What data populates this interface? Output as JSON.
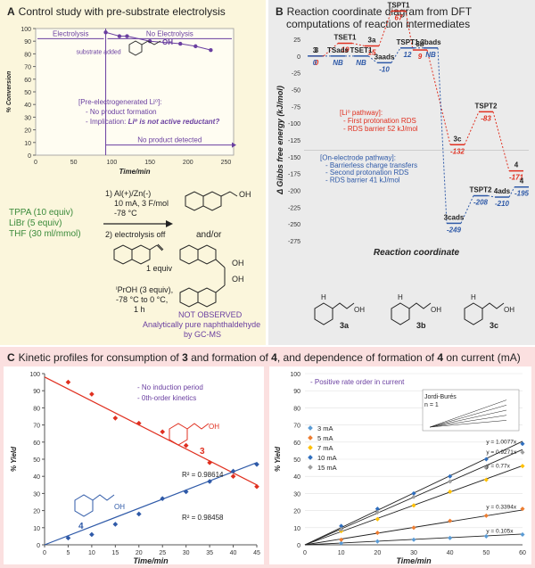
{
  "panelA": {
    "letter": "A",
    "title": "Control study with pre-substrate electrolysis",
    "ylabel": "% Conversion",
    "xlabel": "Time/min",
    "yticks": [
      "0",
      "10",
      "20",
      "30",
      "40",
      "50",
      "60",
      "70",
      "80",
      "90",
      "100"
    ],
    "xticks": [
      "0",
      "50",
      "100",
      "150",
      "200",
      "250"
    ],
    "electrolysis_label": "Electrolysis",
    "no_electrolysis_label": "No Electrolysis",
    "substrate_added": "substrate added",
    "oh_label": "OH",
    "note_line1": "[Pre-electrogenerated Li⁰]:",
    "note_line2": "- No product formation",
    "note_line3": "- Implication: ",
    "note_line3b": "Li⁰ is not active reductant?",
    "no_product": "No product detected",
    "points": [
      [
        92,
        97
      ],
      [
        110,
        94
      ],
      [
        120,
        94
      ],
      [
        150,
        90
      ],
      [
        190,
        88
      ],
      [
        210,
        86
      ],
      [
        230,
        83
      ]
    ]
  },
  "scheme": {
    "reagents1": "TPPA (10 equiv)",
    "reagents2": "LiBr (5 equiv)",
    "reagents3": "THF (30 ml/mmol)",
    "step1a": "1) Al(+)/Zn(-)",
    "step1b": "10 mA, 3 F/mol",
    "step1c": "-78 °C",
    "step2a": "2) electrolysis off",
    "equiv": "1 equiv",
    "iproh": "ⁱPrOH (3 equiv),",
    "temp": "-78 °C to 0 °C,",
    "time": "1 h",
    "andor": "and/or",
    "oh1": "OH",
    "oh2": "OH",
    "oh3": "OH",
    "not_observed": "NOT OBSERVED",
    "analytic1": "Analytically pure naphthaldehyde",
    "analytic2": "by GC-MS"
  },
  "panelB": {
    "letter": "B",
    "title1": "Reaction coordinate diagram from DFT",
    "title2": "computations of reaction intermediates",
    "ylabel": "Δ Gibbs free energy (kJ/mol)",
    "xlabel": "Reaction coordinate",
    "yticks": [
      "25",
      "0",
      "-25",
      "-50",
      "-75",
      "-100",
      "-125",
      "-150",
      "-175",
      "-200",
      "-225",
      "-250",
      "-275"
    ],
    "red_labels": [
      "3",
      "TSET1",
      "3a",
      "TSPT1",
      "3b",
      "3c",
      "TSPT2",
      "4"
    ],
    "red_values": [
      "0",
      "19",
      "15",
      "67",
      "9",
      "-132",
      "-83",
      "-171"
    ],
    "red_note1": "[Li⁰ pathway]:",
    "red_note2": "- First protonation RDS",
    "red_note3": "- RDS barrier 52 kJ/mol",
    "blue_labels": [
      "3",
      "TSads",
      "TSET1",
      "3aads",
      "TSPT1",
      "3bads",
      "3cads",
      "TSPT2",
      "4ads",
      "4"
    ],
    "blue_values": [
      "0",
      "NB",
      "NB",
      "-10",
      "12",
      "NB",
      "-249",
      "-208",
      "-210",
      "-195"
    ],
    "blue_note1": "[On-electrode pathway]:",
    "blue_note2": "- Barrierless charge transfers",
    "blue_note3": "- Second protonation RDS",
    "blue_note4": "- RDS barrier 41 kJ/mol",
    "struct_a": "3a",
    "struct_b": "3b",
    "struct_c": "3c",
    "h": "H",
    "oh": "OH"
  },
  "panelC": {
    "letter": "C",
    "title_parts": [
      "Kinetic profiles for consumption of ",
      "3",
      " and formation of ",
      "4",
      ", and dependence of formation of ",
      "4",
      " on current (mA)"
    ],
    "left": {
      "ylabel": "% Yield",
      "xlabel": "Time/min",
      "note1": "- No induction period",
      "note2": "- 0th-order kinetics",
      "label3": "3",
      "label4": "4",
      "oh3": "OH",
      "oh4": "OH",
      "r2_red": "R² = 0.98614",
      "r2_blue": "R² = 0.98458",
      "xticks": [
        "0",
        "5",
        "10",
        "15",
        "20",
        "25",
        "30",
        "35",
        "40",
        "45"
      ],
      "yticks": [
        "0",
        "10",
        "20",
        "30",
        "40",
        "50",
        "60",
        "70",
        "80",
        "90",
        "100"
      ]
    },
    "right": {
      "ylabel": "% Yield",
      "xlabel": "Time/min",
      "note": "- Positive rate order in current",
      "inset1": "Jordi-Burés",
      "inset2": "n = 1",
      "legend": [
        "3 mA",
        "5 mA",
        "7 mA",
        "10 mA",
        "15 mA"
      ],
      "fits": [
        "y = 1.0077x",
        "y = 0.9271x",
        "y = 0.77x",
        "y = 0.3394x",
        "y = 0.105x"
      ],
      "xticks": [
        "0",
        "10",
        "20",
        "30",
        "40",
        "50",
        "60"
      ],
      "yticks": [
        "0",
        "10",
        "20",
        "30",
        "40",
        "50",
        "60",
        "70",
        "80",
        "90",
        "100"
      ]
    }
  },
  "chart_data": [
    {
      "type": "scatter",
      "title": "Control study with pre-substrate electrolysis",
      "xlabel": "Time/min",
      "ylabel": "% Conversion",
      "xlim": [
        0,
        260
      ],
      "ylim": [
        0,
        100
      ],
      "series": [
        {
          "x": [
            92,
            110,
            120,
            150,
            190,
            210,
            230
          ],
          "y": [
            97,
            94,
            94,
            90,
            88,
            86,
            83
          ]
        }
      ]
    },
    {
      "type": "line",
      "title": "Reaction coordinate diagram from DFT computations of reaction intermediates",
      "xlabel": "Reaction coordinate",
      "ylabel": "Δ Gibbs free energy (kJ/mol)",
      "ylim": [
        -275,
        25
      ],
      "series": [
        {
          "name": "Li⁰ pathway",
          "color": "#e03020",
          "categories": [
            "3",
            "TSET1",
            "3a",
            "TSPT1",
            "3b",
            "3c",
            "TSPT2",
            "4"
          ],
          "values": [
            0,
            19,
            15,
            67,
            9,
            -132,
            -83,
            -171
          ]
        },
        {
          "name": "On-electrode pathway",
          "color": "#2f5aa8",
          "categories": [
            "3",
            "TSads",
            "TSET1",
            "3aads",
            "TSPT1",
            "3bads",
            "3cads",
            "TSPT2",
            "4ads",
            "4"
          ],
          "values": [
            0,
            null,
            null,
            -10,
            12,
            null,
            -249,
            -208,
            -210,
            -195
          ]
        }
      ]
    },
    {
      "type": "scatter",
      "xlabel": "Time/min",
      "ylabel": "% Yield",
      "xlim": [
        0,
        45
      ],
      "ylim": [
        0,
        100
      ],
      "series": [
        {
          "name": "3",
          "color": "#e03020",
          "x": [
            5,
            10,
            15,
            20,
            25,
            30,
            35,
            40,
            45
          ],
          "y": [
            95,
            88,
            74,
            71,
            66,
            58,
            48,
            40,
            34
          ],
          "fit_r2": "0.98614"
        },
        {
          "name": "4",
          "color": "#2f5aa8",
          "x": [
            5,
            10,
            15,
            20,
            25,
            30,
            35,
            40,
            45
          ],
          "y": [
            4,
            6,
            12,
            18,
            27,
            31,
            37,
            43,
            47
          ],
          "fit_r2": "0.98458"
        }
      ]
    },
    {
      "type": "scatter",
      "xlabel": "Time/min",
      "ylabel": "% Yield",
      "xlim": [
        0,
        60
      ],
      "ylim": [
        0,
        100
      ],
      "series": [
        {
          "name": "3 mA",
          "color": "#5a9bd5",
          "slope": 0.105,
          "x": [
            10,
            20,
            30,
            40,
            50,
            60
          ],
          "y": [
            1,
            2,
            3,
            4,
            5,
            6
          ]
        },
        {
          "name": "5 mA",
          "color": "#ed7d31",
          "slope": 0.3394,
          "x": [
            10,
            20,
            30,
            40,
            50,
            60
          ],
          "y": [
            3,
            7,
            10,
            14,
            17,
            21
          ]
        },
        {
          "name": "7 mA",
          "color": "#ffc000",
          "slope": 0.77,
          "x": [
            10,
            20,
            30,
            40,
            50,
            60
          ],
          "y": [
            8,
            15,
            23,
            31,
            38,
            46
          ]
        },
        {
          "name": "10 mA",
          "color": "#2f6fbf",
          "slope": 1.0077,
          "x": [
            10,
            20,
            30,
            40,
            50,
            60
          ],
          "y": [
            11,
            21,
            30,
            40,
            50,
            59
          ]
        },
        {
          "name": "15 mA",
          "color": "#9e9e9e",
          "slope": 0.9271,
          "x": [
            10,
            20,
            30,
            40,
            50,
            60
          ],
          "y": [
            9,
            19,
            28,
            37,
            45,
            54
          ]
        }
      ]
    }
  ]
}
